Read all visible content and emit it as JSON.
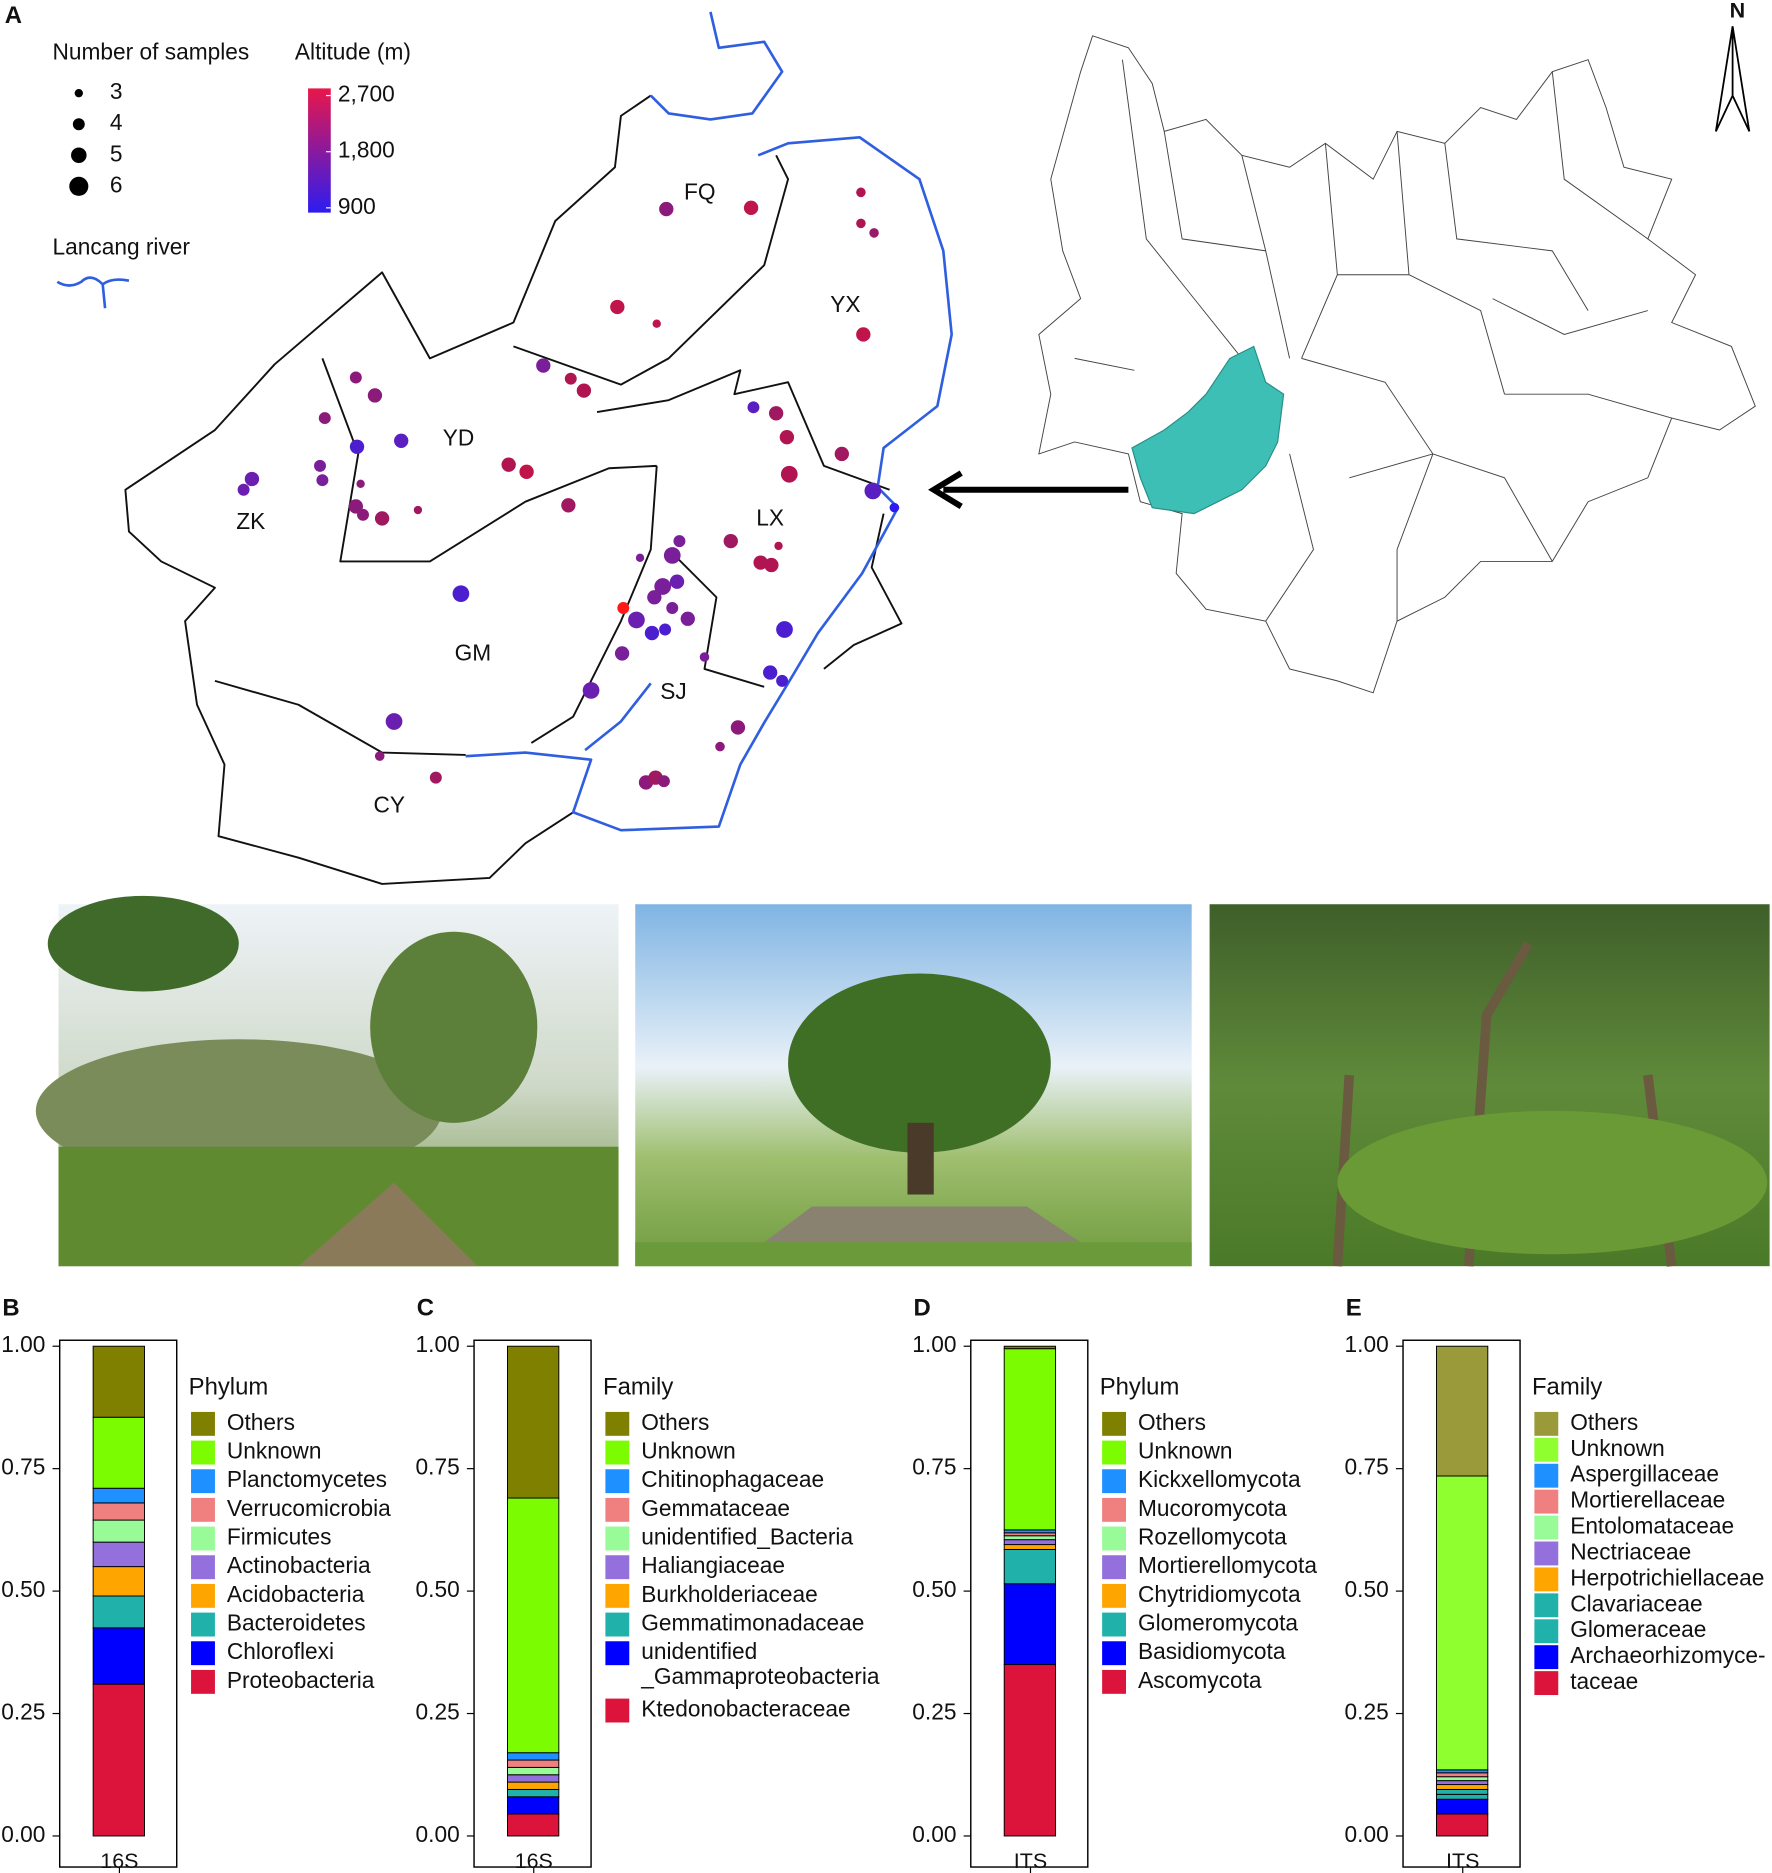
{
  "map": {
    "panel": "A",
    "size_title": "Number of samples",
    "sizes": [
      3,
      4,
      5,
      6
    ],
    "altitude_title": "Altitude (m)",
    "altitude_lim": [
      900,
      2700
    ],
    "altitude_ticks": [
      900,
      {
        "value": 1800,
        "label": "1,800"
      },
      {
        "value": 2700,
        "label": "2,700"
      }
    ],
    "altitude_colors": [
      "#2d1cf0",
      "#e8174a"
    ],
    "river": "Lancang river",
    "river_color": "#2f5fe0",
    "regions": [
      "FQ",
      "YX",
      "YD",
      "ZK",
      "LX",
      "GM",
      "SJ",
      "CY"
    ],
    "north": "N"
  },
  "chart_data": [
    {
      "type": "bar",
      "stacked": true,
      "panel": "B",
      "legend_title": "Phylum",
      "categories": [
        "16S"
      ],
      "ylim": [
        0,
        1
      ],
      "yticks": [
        {
          "value": 0,
          "label": "0.00"
        },
        {
          "value": 0.25,
          "label": "0.25"
        },
        {
          "value": 0.5,
          "label": "0.50"
        },
        {
          "value": 0.75,
          "label": "0.75"
        },
        {
          "value": 1,
          "label": "1.00"
        }
      ],
      "series": [
        {
          "name": "Others",
          "color": "#7f7f00",
          "values": [
            0.145
          ]
        },
        {
          "name": "Unknown",
          "color": "#7cfc00",
          "values": [
            0.145
          ]
        },
        {
          "name": "Planctomycetes",
          "color": "#1e90ff",
          "values": [
            0.03
          ]
        },
        {
          "name": "Verrucomicrobia",
          "color": "#f08080",
          "values": [
            0.035
          ]
        },
        {
          "name": "Firmicutes",
          "color": "#98fb98",
          "values": [
            0.045
          ]
        },
        {
          "name": "Actinobacteria",
          "color": "#9370db",
          "values": [
            0.05
          ]
        },
        {
          "name": "Acidobacteria",
          "color": "#ffa500",
          "values": [
            0.06
          ]
        },
        {
          "name": "Bacteroidetes",
          "color": "#20b2aa",
          "values": [
            0.065
          ]
        },
        {
          "name": "Chloroflexi",
          "color": "#0000ff",
          "values": [
            0.115
          ]
        },
        {
          "name": "Proteobacteria",
          "color": "#dc143c",
          "values": [
            0.31
          ]
        }
      ]
    },
    {
      "type": "bar",
      "stacked": true,
      "panel": "C",
      "legend_title": "Family",
      "categories": [
        "16S"
      ],
      "ylim": [
        0,
        1
      ],
      "yticks": [
        {
          "value": 0,
          "label": "0.00"
        },
        {
          "value": 0.25,
          "label": "0.25"
        },
        {
          "value": 0.5,
          "label": "0.50"
        },
        {
          "value": 0.75,
          "label": "0.75"
        },
        {
          "value": 1,
          "label": "1.00"
        }
      ],
      "series": [
        {
          "name": "Others",
          "color": "#7f7f00",
          "values": [
            0.31
          ]
        },
        {
          "name": "Unknown",
          "color": "#7cfc00",
          "values": [
            0.52
          ]
        },
        {
          "name": "Chitinophagaceae",
          "color": "#1e90ff",
          "values": [
            0.015
          ]
        },
        {
          "name": "Gemmataceae",
          "color": "#f08080",
          "values": [
            0.015
          ]
        },
        {
          "name": "unidentified_Bacteria",
          "color": "#98fb98",
          "values": [
            0.015
          ]
        },
        {
          "name": "Haliangiaceae",
          "color": "#9370db",
          "values": [
            0.015
          ]
        },
        {
          "name": "Burkholderiaceae",
          "color": "#ffa500",
          "values": [
            0.015
          ]
        },
        {
          "name": "Gemmatimonadaceae",
          "color": "#20b2aa",
          "values": [
            0.015
          ]
        },
        {
          "name": "unidentified\n_Gammaproteobacteria",
          "color": "#0000ff",
          "values": [
            0.035
          ]
        },
        {
          "name": "Ktedonobacteraceae",
          "color": "#dc143c",
          "values": [
            0.045
          ]
        }
      ]
    },
    {
      "type": "bar",
      "stacked": true,
      "panel": "D",
      "legend_title": "Phylum",
      "categories": [
        "ITS"
      ],
      "ylim": [
        0,
        1
      ],
      "yticks": [
        {
          "value": 0,
          "label": "0.00"
        },
        {
          "value": 0.25,
          "label": "0.25"
        },
        {
          "value": 0.5,
          "label": "0.50"
        },
        {
          "value": 0.75,
          "label": "0.75"
        },
        {
          "value": 1,
          "label": "1.00"
        }
      ],
      "series": [
        {
          "name": "Others",
          "color": "#7f7f00",
          "values": [
            0.005
          ]
        },
        {
          "name": "Unknown",
          "color": "#7cfc00",
          "values": [
            0.37
          ]
        },
        {
          "name": "Kickxellomycota",
          "color": "#1e90ff",
          "values": [
            0.006
          ]
        },
        {
          "name": "Mucoromycota",
          "color": "#f08080",
          "values": [
            0.006
          ]
        },
        {
          "name": "Rozellomycota",
          "color": "#98fb98",
          "values": [
            0.008
          ]
        },
        {
          "name": "Mortierellomycota",
          "color": "#9370db",
          "values": [
            0.01
          ]
        },
        {
          "name": "Chytridiomycota",
          "color": "#ffa500",
          "values": [
            0.01
          ]
        },
        {
          "name": "Glomeromycota",
          "color": "#20b2aa",
          "values": [
            0.07
          ]
        },
        {
          "name": "Basidiomycota",
          "color": "#0000ff",
          "values": [
            0.165
          ]
        },
        {
          "name": "Ascomycota",
          "color": "#dc143c",
          "values": [
            0.35
          ]
        }
      ]
    },
    {
      "type": "bar",
      "stacked": true,
      "panel": "E",
      "legend_title": "Family",
      "categories": [
        "ITS"
      ],
      "ylim": [
        0,
        1
      ],
      "yticks": [
        {
          "value": 0,
          "label": "0.00"
        },
        {
          "value": 0.25,
          "label": "0.25"
        },
        {
          "value": 0.5,
          "label": "0.50"
        },
        {
          "value": 0.75,
          "label": "0.75"
        },
        {
          "value": 1,
          "label": "1.00"
        }
      ],
      "series": [
        {
          "name": "Others",
          "color": "#9a9a3a",
          "values": [
            0.265
          ]
        },
        {
          "name": "Unknown",
          "color": "#90ff30",
          "values": [
            0.6
          ]
        },
        {
          "name": "Aspergillaceae",
          "color": "#1e90ff",
          "values": [
            0.006
          ]
        },
        {
          "name": "Mortierellaceae",
          "color": "#f08080",
          "values": [
            0.008
          ]
        },
        {
          "name": "Entolomataceae",
          "color": "#98fb98",
          "values": [
            0.008
          ]
        },
        {
          "name": "Nectriaceae",
          "color": "#9370db",
          "values": [
            0.008
          ]
        },
        {
          "name": "Herpotrichiellaceae",
          "color": "#ffa500",
          "values": [
            0.01
          ]
        },
        {
          "name": "Clavariaceae",
          "color": "#20b2aa",
          "values": [
            0.01
          ]
        },
        {
          "name": "Glomeraceae",
          "color": "#20b2aa",
          "values": [
            0.01
          ]
        },
        {
          "name": "Archaeorhizomyce-",
          "color": "#0000ff",
          "values": [
            0.03
          ]
        },
        {
          "name": "taceae",
          "color": "#dc143c",
          "values": [
            0.045
          ]
        }
      ]
    }
  ]
}
